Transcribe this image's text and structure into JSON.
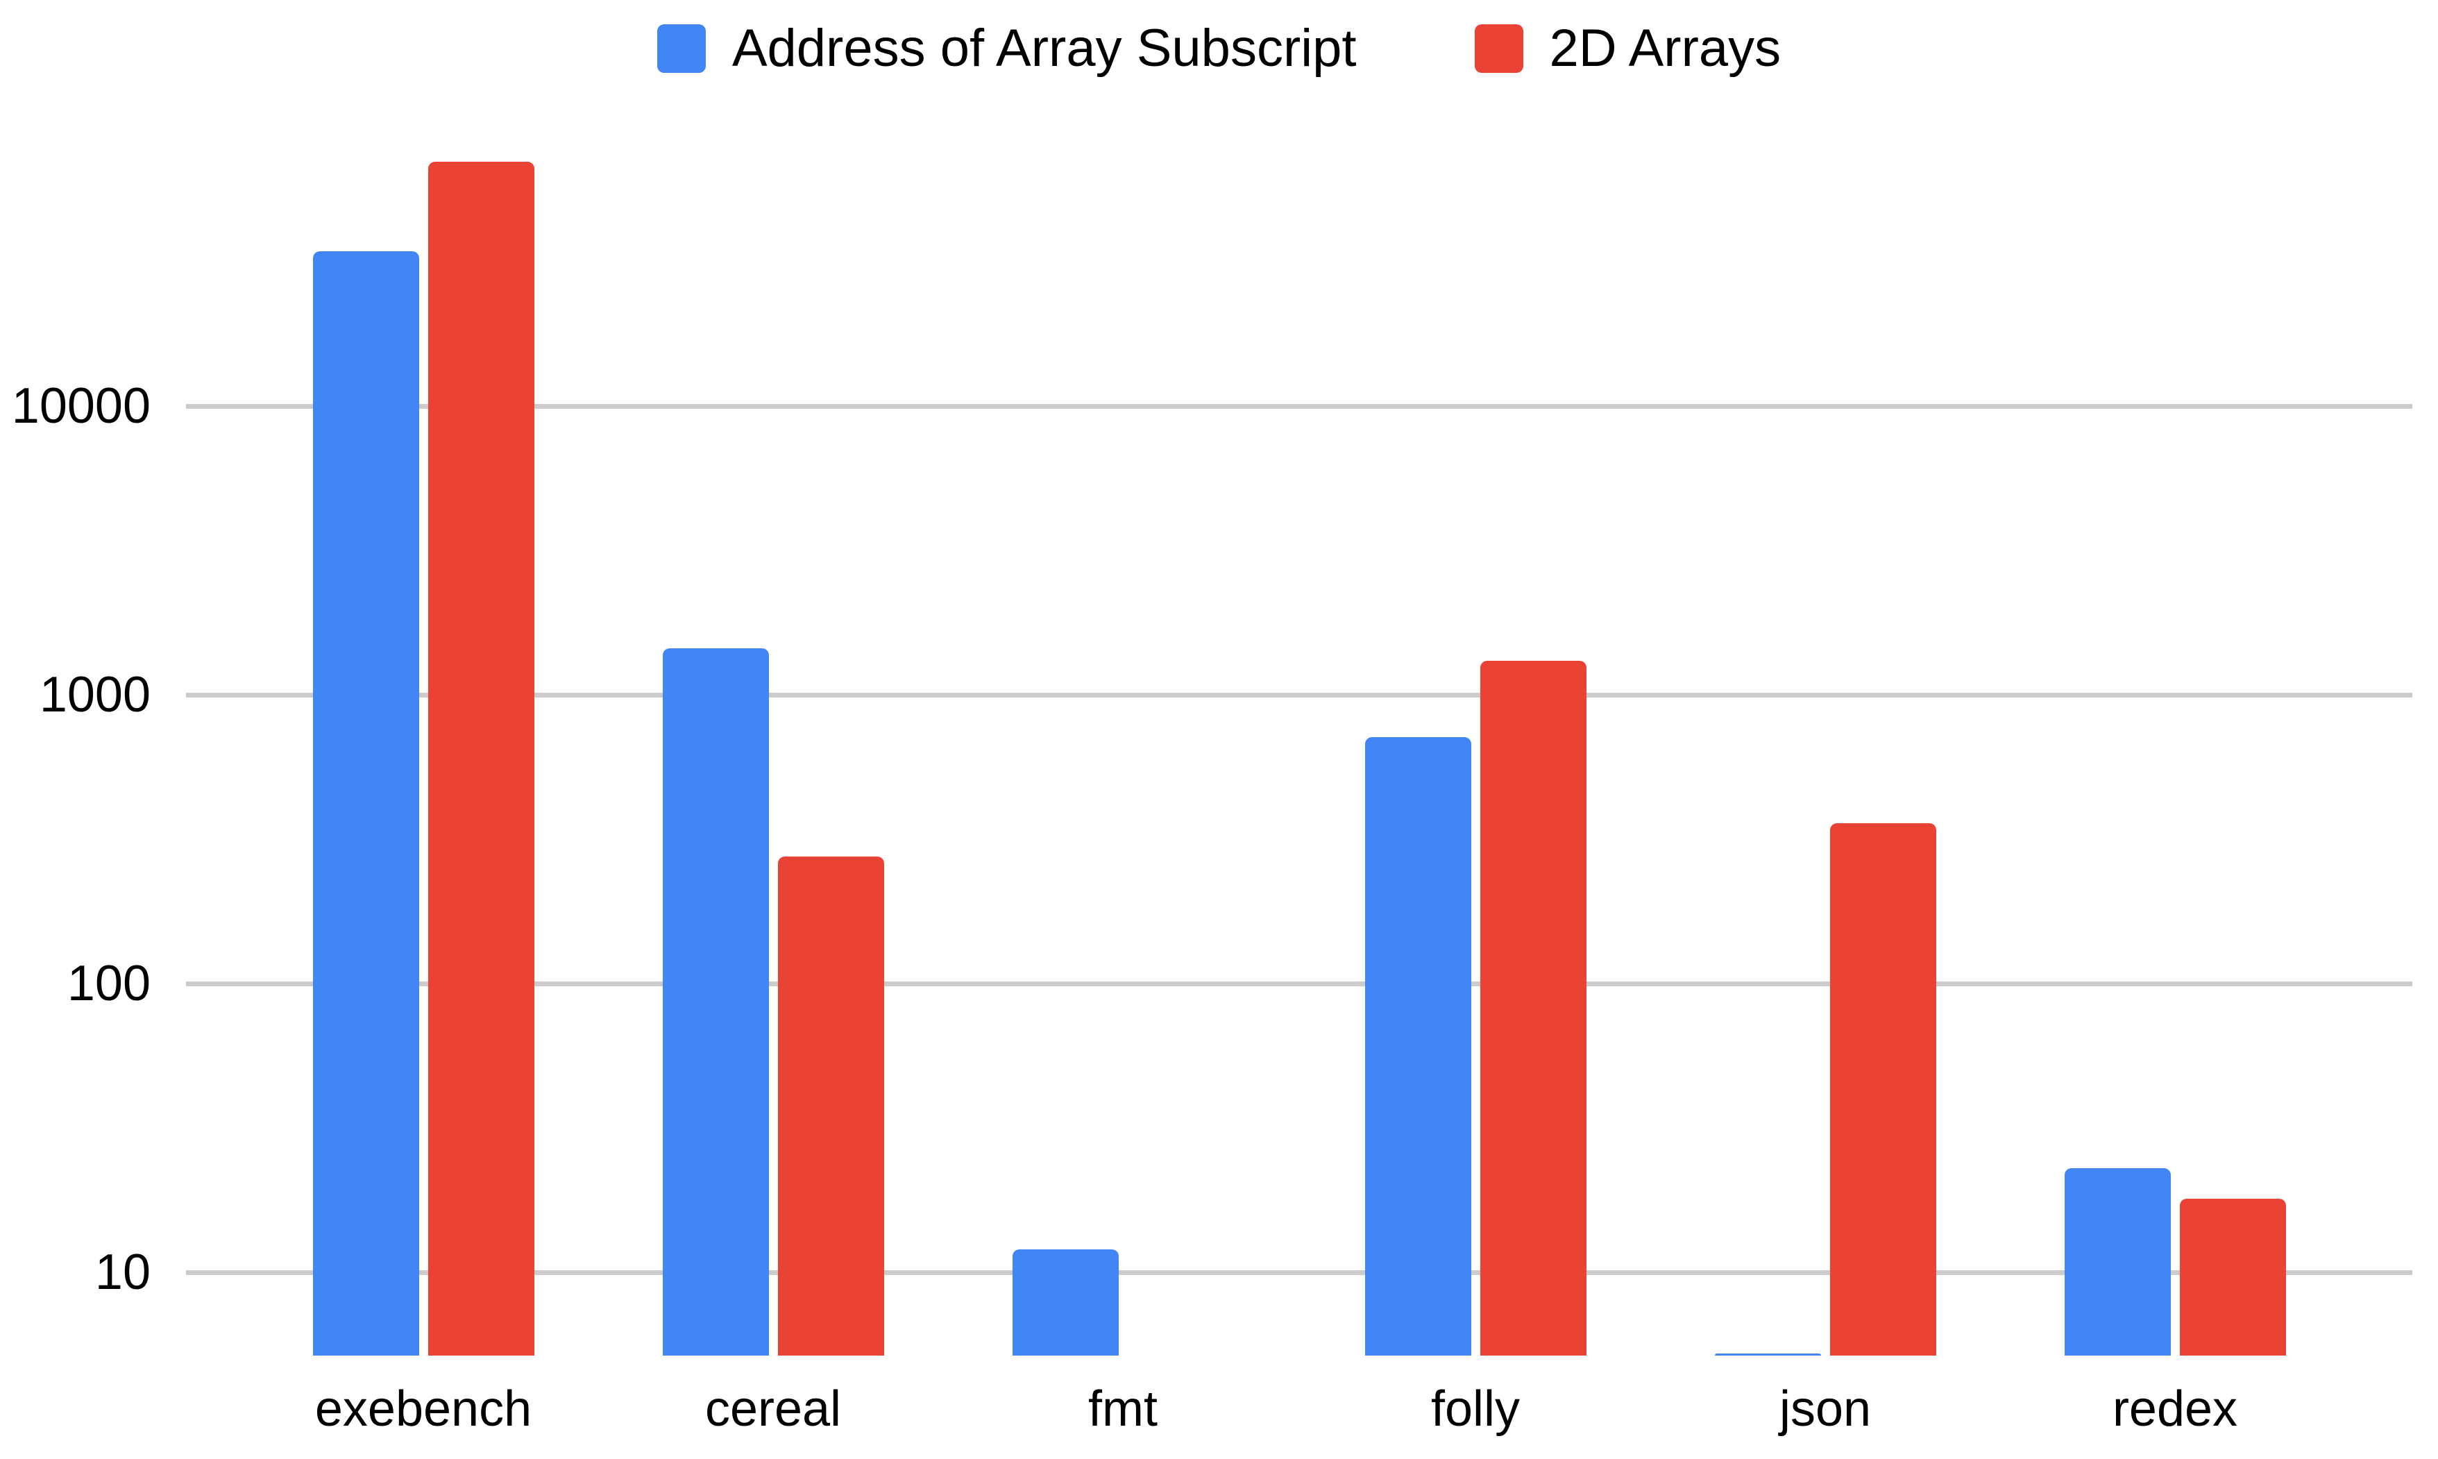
{
  "chart_data": {
    "type": "bar",
    "title": "",
    "y_scale": "log",
    "categories": [
      "exebench",
      "cereal",
      "fmt",
      "folly",
      "json",
      "redex"
    ],
    "series": [
      {
        "name": "Address of Array Subscript",
        "color": "#4285F4",
        "values": [
          34400,
          1450,
          12,
          715,
          5.2,
          23
        ]
      },
      {
        "name": "2D Arrays",
        "color": "#EA4335",
        "values": [
          70200,
          275,
          null,
          1310,
          360,
          18
        ]
      }
    ],
    "y_ticks": [
      10,
      100,
      1000,
      10000
    ],
    "y_tick_labels": [
      "10",
      "100",
      "1000",
      "10000"
    ],
    "ylim": [
      5.15,
      155000
    ],
    "xlabel": "",
    "ylabel": "",
    "grid": true,
    "legend_position": "top",
    "gridline_color": "#CCCCCC",
    "background_color": "#FFFFFF",
    "text_color": "#000000"
  },
  "legend": {
    "items": [
      {
        "label": "Address of Array Subscript",
        "color": "#4285F4"
      },
      {
        "label": "2D Arrays",
        "color": "#EA4335"
      }
    ]
  }
}
